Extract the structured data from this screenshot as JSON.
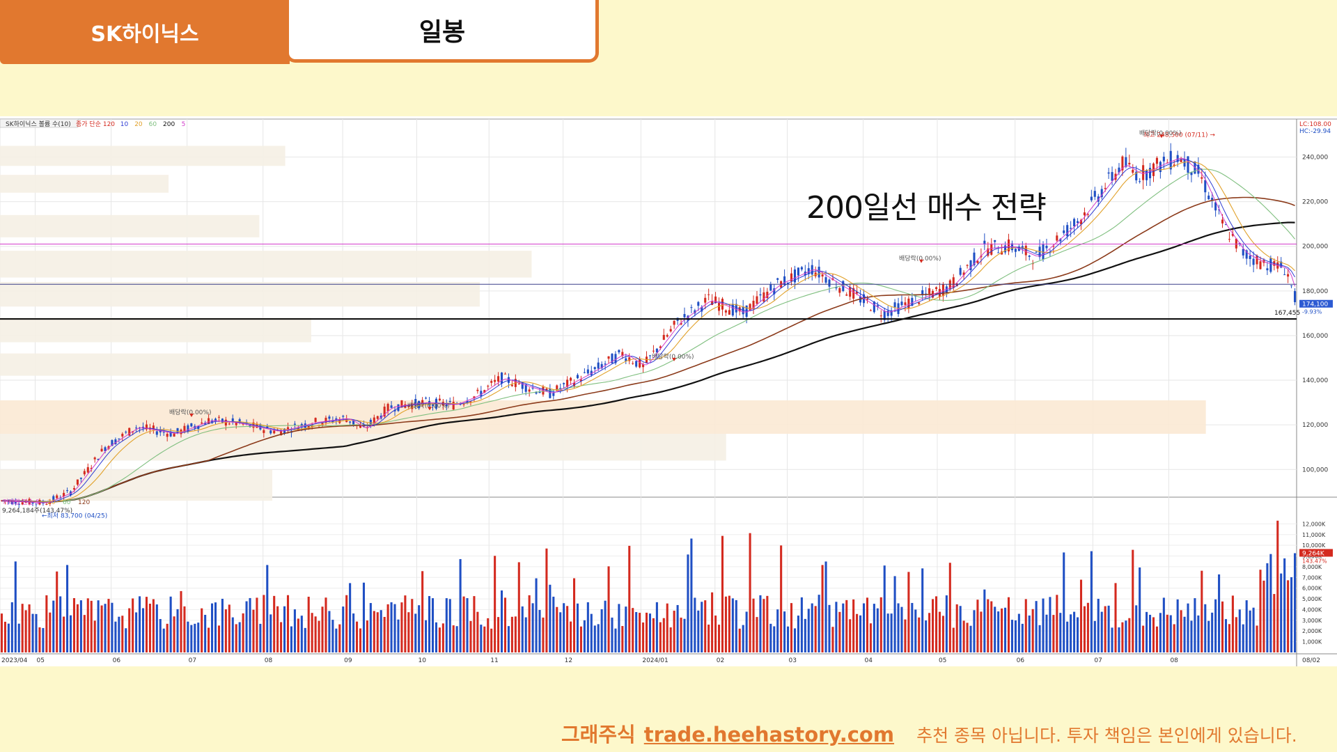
{
  "header": {
    "stock_tab": "SK하이닉스",
    "period_tab": "일봉"
  },
  "headline": "200일선 매수 전략",
  "footer": {
    "brand": "그래주식",
    "link": "trade.heehastory.com",
    "disclaimer": "추천 종목 아닙니다. 투자 책임은 본인에게 있습니다."
  },
  "colors": {
    "accent": "#e1782f",
    "background": "#fdf8cb",
    "up_candle": "#d42a1f",
    "down_candle": "#1f4fc4",
    "ma5": "#d23ccb",
    "ma10": "#2d3bd3",
    "ma20": "#e1a12a",
    "ma60": "#7fbf7f",
    "ma120": "#8b3a1a",
    "ma200": "#111111"
  },
  "chart_data": {
    "type": "candlestick",
    "legend_price": [
      "SK하이닉스 볼륨 수(10)",
      "종가 단순 120",
      "10",
      "20",
      "60",
      "200",
      "5"
    ],
    "legend_volume": [
      "거래량 단순 5",
      "20",
      "60",
      "120"
    ],
    "volume_readout": "9,264,184주(143.47%)",
    "dates": [
      "2023/04",
      "05",
      "06",
      "07",
      "08",
      "09",
      "10",
      "11",
      "12",
      "2024/01",
      "02",
      "03",
      "04",
      "05",
      "06",
      "07",
      "08",
      "08/02"
    ],
    "price_ticks": [
      "240,000",
      "220,000",
      "200,000",
      "180,000",
      "160,000",
      "140,000",
      "120,000",
      "100,000"
    ],
    "price_range": [
      82000,
      252000
    ],
    "volume_ticks": [
      "12,000K",
      "11,000K",
      "10,000K",
      "9,000K",
      "8,000K",
      "7,000K",
      "6,000K",
      "5,000K",
      "4,000K",
      "3,000K",
      "2,000K",
      "1,000K"
    ],
    "volume_range": [
      0,
      13000000
    ],
    "axis_markers": {
      "lc": "LC:108.00",
      "hc": "HC:-29.94",
      "current_price": "174,100",
      "current_change": "-9.93%",
      "ma200_value": "167,455",
      "volume_current": "9,264K",
      "volume_pct": "143.47%"
    },
    "annotations": {
      "low": "←최저 83,700 (04/25)",
      "high": "최고 248,500 (07/11) →",
      "dividend": "배당락(0.00%)"
    },
    "key_prices": [
      {
        "price": 201000,
        "color": "#d23ccb"
      },
      {
        "price": 183000,
        "color": "#3a3f8a"
      },
      {
        "price": 167455,
        "color": "#111111"
      }
    ],
    "price_path": [
      [
        0,
        86000
      ],
      [
        25,
        85000
      ],
      [
        40,
        90000
      ],
      [
        60,
        110000
      ],
      [
        78,
        119000
      ],
      [
        100,
        116000
      ],
      [
        120,
        122000
      ],
      [
        135,
        121000
      ],
      [
        160,
        117000
      ],
      [
        180,
        121000
      ],
      [
        200,
        123000
      ],
      [
        210,
        118000
      ],
      [
        225,
        128000
      ],
      [
        245,
        130000
      ],
      [
        262,
        129000
      ],
      [
        275,
        133000
      ],
      [
        290,
        141000
      ],
      [
        305,
        137000
      ],
      [
        318,
        134000
      ],
      [
        340,
        143000
      ],
      [
        360,
        152000
      ],
      [
        372,
        146000
      ],
      [
        392,
        166000
      ],
      [
        410,
        176000
      ],
      [
        430,
        170000
      ],
      [
        450,
        183000
      ],
      [
        470,
        190000
      ],
      [
        495,
        178000
      ],
      [
        512,
        170000
      ],
      [
        530,
        176000
      ],
      [
        550,
        182000
      ],
      [
        570,
        199000
      ],
      [
        585,
        200000
      ],
      [
        600,
        195000
      ],
      [
        625,
        212000
      ],
      [
        650,
        237000
      ],
      [
        660,
        232000
      ],
      [
        670,
        236000
      ],
      [
        683,
        240000
      ],
      [
        695,
        232000
      ],
      [
        708,
        210000
      ],
      [
        720,
        197000
      ],
      [
        730,
        193000
      ],
      [
        745,
        190000
      ],
      [
        751,
        174100
      ]
    ],
    "n_days": 752
  }
}
